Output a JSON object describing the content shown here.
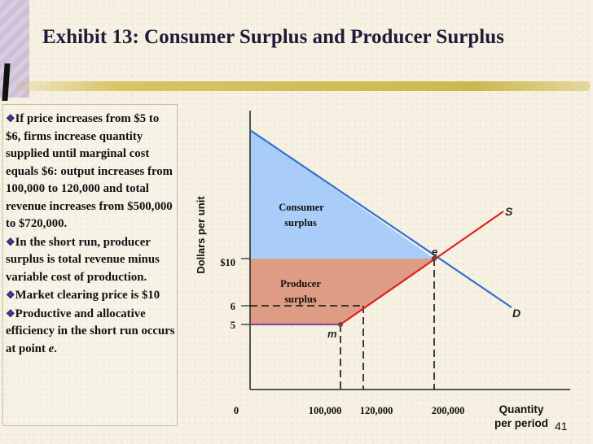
{
  "slide": {
    "title": "Exhibit 13: Consumer Surplus and Producer Surplus",
    "page_number": "41"
  },
  "notes": [
    {
      "text": "If price increases from $5 to $6, firms increase quantity supplied until marginal cost equals $6: output increases from 100,000 to 120,000 and total revenue increases from $500,000 to $720,000."
    },
    {
      "text": "In the short run, producer surplus is total revenue minus variable cost of production."
    },
    {
      "text": "Market clearing price is $10"
    },
    {
      "text": "Productive and allocative efficiency in the short run occurs at point ",
      "emph": "e",
      "tail": "."
    }
  ],
  "chart": {
    "y_axis_label": "Dollars per unit",
    "x_axis_label_line1": "Quantity",
    "x_axis_label_line2": "per period",
    "origin_label": "0",
    "y_ticks": [
      "$10",
      "6",
      "5"
    ],
    "x_ticks": [
      "100,000",
      "120,000",
      "200,000"
    ],
    "curve_labels": {
      "supply": "S",
      "demand": "D"
    },
    "points": {
      "equilibrium": "e",
      "min_avc": "m"
    },
    "regions": {
      "consumer_line1": "Consumer",
      "consumer_line2": "surplus",
      "producer_line1": "Producer",
      "producer_line2": "surplus"
    },
    "colors": {
      "consumer_surplus": "#a9cdf8",
      "producer_surplus": "#df9c84",
      "demand": "#2f6fd6",
      "supply": "#e02020",
      "avc_floor": "#8a3da2"
    }
  },
  "chart_data": {
    "type": "area",
    "xlabel": "Quantity per period",
    "ylabel": "Dollars per unit",
    "equilibrium": {
      "x": 200000,
      "y": 10
    },
    "supply_points": [
      [
        0,
        5
      ],
      [
        100000,
        5
      ],
      [
        120000,
        6
      ],
      [
        200000,
        10
      ]
    ],
    "price_levels": [
      5,
      6,
      10
    ],
    "quantities": [
      100000,
      120000,
      200000
    ]
  }
}
